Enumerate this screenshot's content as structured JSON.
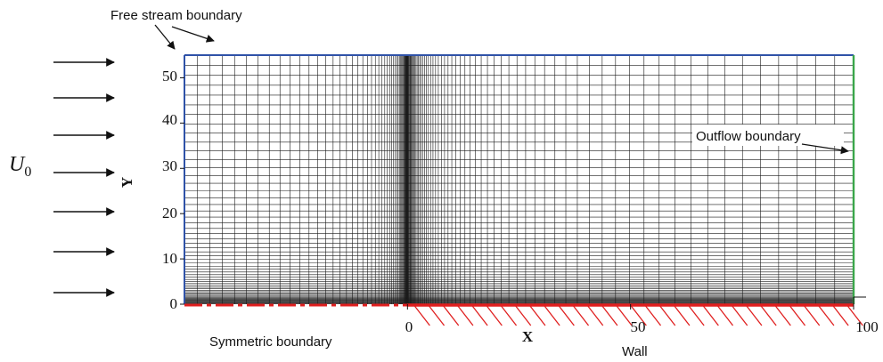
{
  "annotations": {
    "free_stream": "Free stream boundary",
    "outflow": "Outflow boundary",
    "symmetric": "Symmetric boundary",
    "wall": "Wall",
    "inflow_velocity_symbol": "U",
    "inflow_velocity_subscript": "0"
  },
  "chart_data": {
    "type": "mesh",
    "xlabel": "X",
    "ylabel": "Y",
    "xlim": [
      -50,
      100
    ],
    "ylim": [
      0,
      55
    ],
    "x_ticks": [
      "0",
      "50",
      "100"
    ],
    "y_ticks": [
      "0",
      "10",
      "20",
      "30",
      "40",
      "50"
    ],
    "leading_edge_x": 0,
    "symmetric_boundary_range": [
      -50,
      0
    ],
    "wall_range": [
      0,
      100
    ],
    "grid_clustering": [
      "toward x = 0",
      "toward y = 0"
    ]
  },
  "colors": {
    "free_stream_boundary": "#2f52a8",
    "outflow_boundary": "#3aa64a",
    "symmetric_boundary": "#e01f1f",
    "wall": "#e01f1f",
    "inflow_boundary": "#2f52a8",
    "mesh": "#1a1a1a"
  }
}
